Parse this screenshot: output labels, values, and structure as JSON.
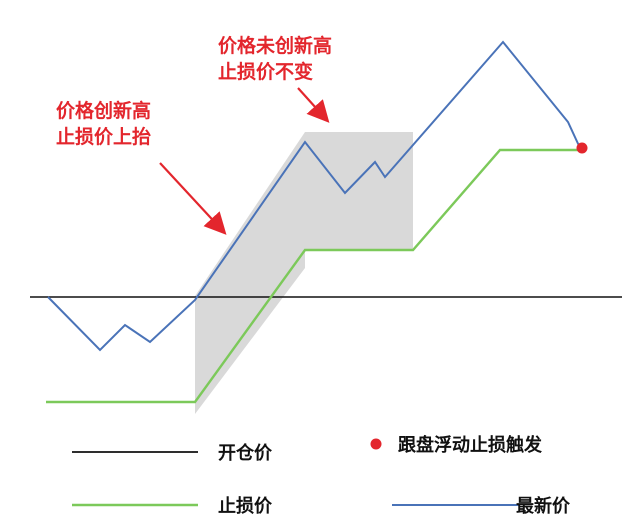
{
  "annotations": {
    "raise": {
      "line1": "价格创新高",
      "line2": "止损价上抬"
    },
    "hold": {
      "line1": "价格未创新高",
      "line2": "止损价不变"
    }
  },
  "legend": {
    "entry_price": "开仓价",
    "stop_price": "止损价",
    "trigger": "跟盘浮动止损触发",
    "latest_price": "最新价"
  },
  "colors": {
    "entry_line": "#111111",
    "stop_line": "#7cc95a",
    "price_line": "#4a73b8",
    "trigger_dot": "#e3262d",
    "shade": "#d9d9d9",
    "annotation": "#e3262d"
  }
}
